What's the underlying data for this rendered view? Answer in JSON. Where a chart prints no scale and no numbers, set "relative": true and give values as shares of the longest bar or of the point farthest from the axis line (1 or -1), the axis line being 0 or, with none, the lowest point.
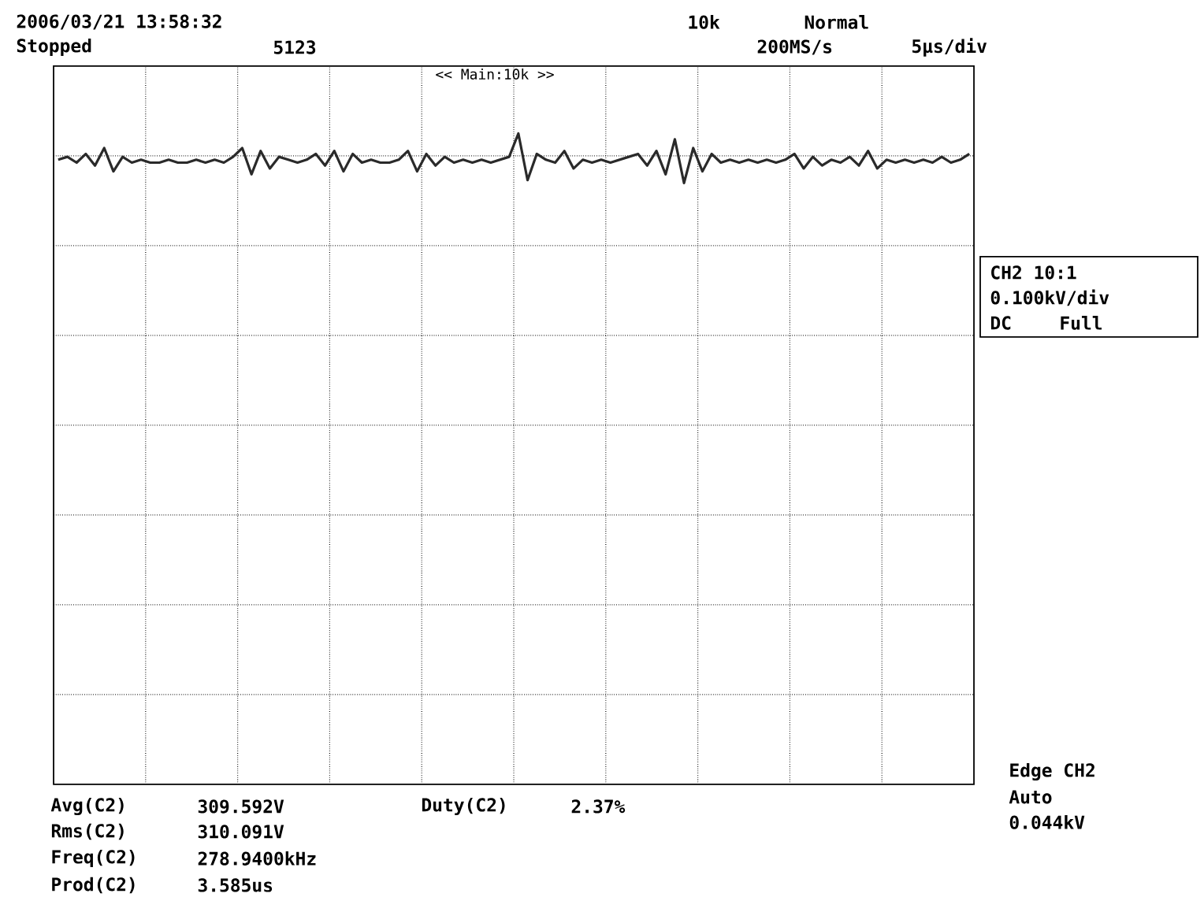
{
  "chart_data": {
    "type": "line",
    "relative": true,
    "grid": true,
    "tick_labels": false,
    "color": "#2a2a2a",
    "categories": [
      null,
      null,
      null,
      null,
      null,
      null,
      null,
      null,
      null,
      null,
      null,
      null,
      null,
      null,
      null,
      null,
      null,
      null,
      null,
      null,
      null,
      null,
      null,
      null,
      null,
      null,
      null,
      null,
      null,
      null,
      null,
      null,
      null,
      null,
      null,
      null,
      null,
      null,
      null,
      null,
      null,
      null,
      null,
      null,
      null,
      null,
      null,
      null,
      null,
      null,
      null,
      null,
      null,
      null,
      null,
      null,
      null,
      null,
      null,
      null,
      null,
      null,
      null,
      null,
      null,
      null,
      null,
      null,
      null,
      null,
      null,
      null,
      null,
      null,
      null,
      null,
      null,
      null,
      null,
      null,
      null,
      null,
      null,
      null,
      null,
      null,
      null,
      null,
      null,
      null,
      null,
      null,
      null,
      null,
      null,
      null,
      null,
      null,
      null,
      null
    ],
    "values": [
      0.91,
      0.92,
      0.9,
      0.93,
      0.89,
      0.95,
      0.87,
      0.92,
      0.9,
      0.91,
      0.9,
      0.9,
      0.91,
      0.9,
      0.9,
      0.91,
      0.9,
      0.91,
      0.9,
      0.92,
      0.95,
      0.86,
      0.94,
      0.88,
      0.92,
      0.91,
      0.9,
      0.91,
      0.93,
      0.89,
      0.94,
      0.87,
      0.93,
      0.9,
      0.91,
      0.9,
      0.9,
      0.91,
      0.94,
      0.87,
      0.93,
      0.89,
      0.92,
      0.9,
      0.91,
      0.9,
      0.91,
      0.9,
      0.91,
      0.92,
      1.0,
      0.84,
      0.93,
      0.91,
      0.9,
      0.94,
      0.88,
      0.91,
      0.9,
      0.91,
      0.9,
      0.91,
      0.92,
      0.93,
      0.89,
      0.94,
      0.86,
      0.98,
      0.83,
      0.95,
      0.87,
      0.93,
      0.9,
      0.91,
      0.9,
      0.91,
      0.9,
      0.91,
      0.9,
      0.91,
      0.93,
      0.88,
      0.92,
      0.89,
      0.91,
      0.9,
      0.92,
      0.89,
      0.94,
      0.88,
      0.91,
      0.9,
      0.91,
      0.9,
      0.91,
      0.9,
      0.92,
      0.9,
      0.91,
      0.93
    ],
    "annotations": [
      "2006/03/21 13:58:32",
      "Stopped",
      "5123",
      "10k",
      "Normal",
      "200MS/s",
      "5µs/div",
      "<< Main:10k >>",
      "CH2 10:1",
      "0.100kV/div",
      "DC",
      "Full",
      "Edge CH2",
      "Auto",
      "0.044kV",
      "Avg(C2)",
      "309.592V",
      "Rms(C2)",
      "310.091V",
      "Freq(C2)",
      "278.9400kHz",
      "Prod(C2)",
      "3.585us",
      "Duty(C2)",
      "2.37%"
    ]
  }
}
